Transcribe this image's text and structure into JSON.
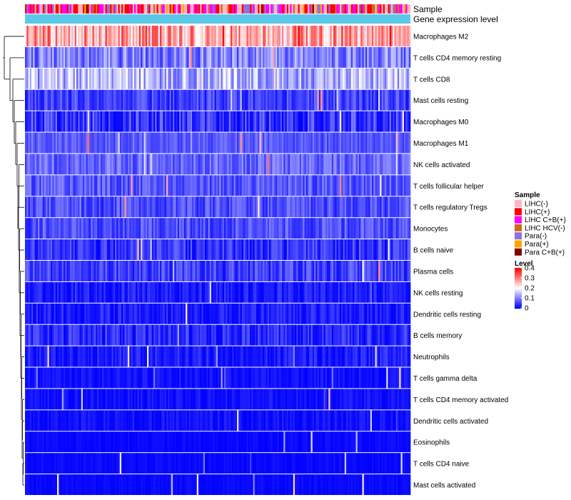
{
  "chart_data": {
    "type": "heatmap",
    "title": "",
    "xlabel": "",
    "ylabel": "",
    "value_range": [
      0,
      0.4
    ],
    "num_samples": 240,
    "annotations": [
      {
        "name": "Sample",
        "type": "categorical"
      },
      {
        "name": "Gene expression level",
        "type": "bar"
      }
    ],
    "rows": [
      {
        "name": "Macrophages M2",
        "mean": 0.27,
        "spread": 0.09
      },
      {
        "name": "T cells CD4 memory resting",
        "mean": 0.1,
        "spread": 0.06
      },
      {
        "name": "T cells CD8",
        "mean": 0.14,
        "spread": 0.07
      },
      {
        "name": "Mast cells resting",
        "mean": 0.05,
        "spread": 0.04
      },
      {
        "name": "Macrophages M0",
        "mean": 0.04,
        "spread": 0.06
      },
      {
        "name": "Macrophages M1",
        "mean": 0.07,
        "spread": 0.03
      },
      {
        "name": "NK cells activated",
        "mean": 0.08,
        "spread": 0.04
      },
      {
        "name": "T cells follicular helper",
        "mean": 0.07,
        "spread": 0.04
      },
      {
        "name": "T cells regulatory  Tregs",
        "mean": 0.06,
        "spread": 0.04
      },
      {
        "name": "Monocytes",
        "mean": 0.06,
        "spread": 0.04
      },
      {
        "name": "B cells naive",
        "mean": 0.04,
        "spread": 0.04
      },
      {
        "name": "Plasma cells",
        "mean": 0.05,
        "spread": 0.04
      },
      {
        "name": "NK cells resting",
        "mean": 0.02,
        "spread": 0.03
      },
      {
        "name": "Dendritic cells resting",
        "mean": 0.02,
        "spread": 0.03
      },
      {
        "name": "B cells memory",
        "mean": 0.03,
        "spread": 0.04
      },
      {
        "name": "Neutrophils",
        "mean": 0.02,
        "spread": 0.03
      },
      {
        "name": "T cells gamma delta",
        "mean": 0.01,
        "spread": 0.02
      },
      {
        "name": "T cells CD4 memory activated",
        "mean": 0.01,
        "spread": 0.02
      },
      {
        "name": "Dendritic cells activated",
        "mean": 0.01,
        "spread": 0.02
      },
      {
        "name": "Eosinophils",
        "mean": 0.005,
        "spread": 0.01
      },
      {
        "name": "T cells CD4 naive",
        "mean": 0.005,
        "spread": 0.01
      },
      {
        "name": "Mast cells activated",
        "mean": 0.005,
        "spread": 0.01
      }
    ],
    "legend": {
      "sample": {
        "title": "Sample",
        "items": [
          {
            "label": "LIHC(-)",
            "color": "#ffb6c1"
          },
          {
            "label": "LIHC(+)",
            "color": "#ff0000"
          },
          {
            "label": "LIHC C+B(+)",
            "color": "#ff00ff"
          },
          {
            "label": "LIHC HCV(-)",
            "color": "#d2691e"
          },
          {
            "label": "Para(-)",
            "color": "#9370db"
          },
          {
            "label": "Para(+)",
            "color": "#ffa500"
          },
          {
            "label": "Para C+B(+)",
            "color": "#800000"
          }
        ]
      },
      "level": {
        "title": "Level",
        "ticks": [
          0.4,
          0.3,
          0.2,
          0.1,
          0
        ]
      }
    },
    "colors": {
      "low": "#0000ff",
      "mid": "#ffffff",
      "high": "#ff0000",
      "gene_bar": "#5bc8e8"
    }
  }
}
